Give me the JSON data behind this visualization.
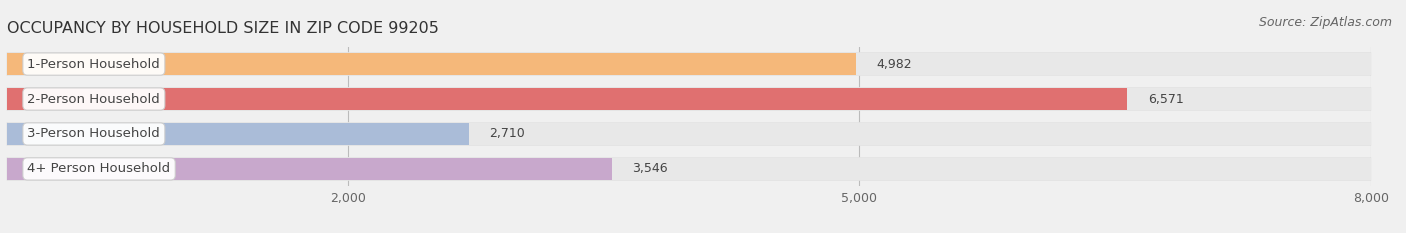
{
  "title": "OCCUPANCY BY HOUSEHOLD SIZE IN ZIP CODE 99205",
  "source": "Source: ZipAtlas.com",
  "categories": [
    "1-Person Household",
    "2-Person Household",
    "3-Person Household",
    "4+ Person Household"
  ],
  "values": [
    4982,
    6571,
    2710,
    3546
  ],
  "bar_colors": [
    "#f5b87a",
    "#e07070",
    "#aabcd8",
    "#c8a8cc"
  ],
  "bar_bg_color": "#e8e8e8",
  "row_bg_colors": [
    "#f8f8f8",
    "#f8f8f8",
    "#f8f8f8",
    "#f8f8f8"
  ],
  "background_color": "#f0f0f0",
  "xlim": [
    0,
    8000
  ],
  "xticks": [
    2000,
    5000,
    8000
  ],
  "bar_height": 0.62,
  "title_fontsize": 11.5,
  "source_fontsize": 9,
  "tick_fontsize": 9,
  "label_fontsize": 9.5,
  "value_fontsize": 9
}
